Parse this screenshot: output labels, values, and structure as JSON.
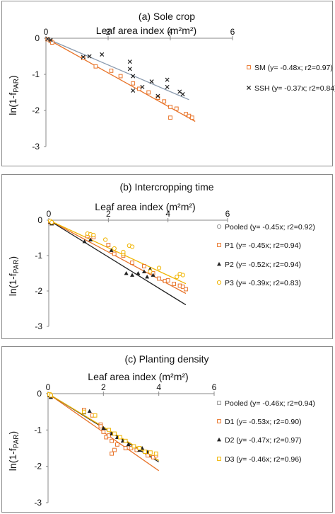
{
  "chart_data": [
    {
      "type": "scatter",
      "title": "(a) Sole crop",
      "xlabel": "Leaf area index (m²m²)",
      "ylabel": "ln(1-fPAR)",
      "ylabel_main": "ln(1-f",
      "ylabel_sub": "PAR",
      "ylabel_end": ")",
      "xlim": [
        0,
        6
      ],
      "ylim": [
        -3,
        0
      ],
      "xticks": [
        0,
        2,
        4,
        6
      ],
      "yticks": [
        0,
        -1,
        -2,
        -3
      ],
      "axis_position": "top",
      "grid": false,
      "legend_position": "right",
      "series": [
        {
          "name": "SM (y= -0.48x; r2=0.97)",
          "marker": "square-open",
          "color": "#e8742a",
          "slope": -0.48,
          "line_xmax": 4.8,
          "points": [
            [
              0.05,
              -0.03
            ],
            [
              0.15,
              -0.08
            ],
            [
              0.2,
              -0.12
            ],
            [
              1.2,
              -0.55
            ],
            [
              1.6,
              -0.78
            ],
            [
              2.1,
              -0.9
            ],
            [
              2.4,
              -1.05
            ],
            [
              2.8,
              -1.25
            ],
            [
              3.0,
              -1.4
            ],
            [
              3.3,
              -1.5
            ],
            [
              3.6,
              -1.65
            ],
            [
              3.8,
              -1.75
            ],
            [
              4.0,
              -1.9
            ],
            [
              4.2,
              -1.95
            ],
            [
              4.5,
              -2.1
            ],
            [
              4.6,
              -2.15
            ],
            [
              4.7,
              -2.2
            ],
            [
              4.0,
              -2.2
            ]
          ]
        },
        {
          "name": "SSH (y= -0.37x; r2=0.84)",
          "marker": "x",
          "color": "#222222",
          "line_color": "#8a9aae",
          "slope": -0.37,
          "line_xmax": 4.6,
          "points": [
            [
              0.05,
              -0.02
            ],
            [
              0.15,
              -0.05
            ],
            [
              1.2,
              -0.52
            ],
            [
              1.4,
              -0.5
            ],
            [
              1.8,
              -0.45
            ],
            [
              2.7,
              -0.65
            ],
            [
              2.7,
              -0.85
            ],
            [
              2.8,
              -1.05
            ],
            [
              2.8,
              -1.45
            ],
            [
              3.1,
              -1.35
            ],
            [
              3.4,
              -1.2
            ],
            [
              3.6,
              -1.6
            ],
            [
              3.9,
              -1.35
            ],
            [
              3.9,
              -1.15
            ],
            [
              4.3,
              -1.48
            ],
            [
              4.4,
              -1.55
            ]
          ]
        }
      ]
    },
    {
      "type": "scatter",
      "title": "(b) Intercropping time",
      "xlabel": "Leaf area index (m²m²)",
      "ylabel": "ln(1-fPAR)",
      "ylabel_main": "ln(1-f",
      "ylabel_sub": "PAR",
      "ylabel_end": ")",
      "xlim": [
        0,
        6
      ],
      "ylim": [
        -3,
        0
      ],
      "xticks": [
        0,
        2,
        4,
        6
      ],
      "yticks": [
        0,
        -1,
        -2,
        -3
      ],
      "axis_position": "top",
      "grid": false,
      "legend_position": "right",
      "series": [
        {
          "name": "Pooled (y= -0.45x; r2=0.92)",
          "marker": "circle-open",
          "color": "#999999",
          "line_color": "#e8742a",
          "slope": -0.45,
          "line_xmax": 4.6,
          "points": []
        },
        {
          "name": "P1 (y= -0.45x; r2=0.94)",
          "marker": "square-open",
          "color": "#e8742a",
          "slope": null,
          "points": [
            [
              0.05,
              -0.05
            ],
            [
              0.1,
              -0.08
            ],
            [
              1.3,
              -0.45
            ],
            [
              1.5,
              -0.48
            ],
            [
              2.0,
              -0.7
            ],
            [
              2.2,
              -0.95
            ],
            [
              2.5,
              -1.0
            ],
            [
              2.8,
              -1.2
            ],
            [
              3.2,
              -1.3
            ],
            [
              3.5,
              -1.5
            ],
            [
              3.7,
              -1.65
            ],
            [
              3.9,
              -1.72
            ],
            [
              4.2,
              -1.8
            ],
            [
              4.4,
              -1.85
            ],
            [
              4.5,
              -1.88
            ],
            [
              4.6,
              -1.95
            ],
            [
              4.0,
              -1.7
            ]
          ]
        },
        {
          "name": "P2 (y= -0.52x; r2=0.94)",
          "marker": "triangle",
          "color": "#222222",
          "line_color": "#222222",
          "slope": -0.52,
          "line_xmax": 4.6,
          "points": [
            [
              0.05,
              -0.05
            ],
            [
              0.1,
              -0.1
            ],
            [
              1.2,
              -0.6
            ],
            [
              1.4,
              -0.55
            ],
            [
              2.1,
              -0.85
            ],
            [
              2.6,
              -1.5
            ],
            [
              2.8,
              -1.55
            ],
            [
              3.0,
              -1.5
            ],
            [
              3.2,
              -1.45
            ],
            [
              3.3,
              -1.6
            ],
            [
              3.5,
              -1.55
            ],
            [
              3.4,
              -1.38
            ]
          ]
        },
        {
          "name": "P3 (y= -0.39x; r2=0.83)",
          "marker": "circle-open",
          "color": "#f0b400",
          "line_color": "#f0b400",
          "slope": -0.39,
          "line_xmax": 4.6,
          "points": [
            [
              0.05,
              -0.02
            ],
            [
              0.1,
              -0.06
            ],
            [
              1.3,
              -0.38
            ],
            [
              1.4,
              -0.4
            ],
            [
              1.5,
              -0.42
            ],
            [
              1.9,
              -0.55
            ],
            [
              2.2,
              -0.8
            ],
            [
              2.5,
              -0.95
            ],
            [
              2.7,
              -0.72
            ],
            [
              2.8,
              -0.75
            ],
            [
              2.5,
              -0.9
            ],
            [
              3.4,
              -1.45
            ],
            [
              3.7,
              -1.35
            ],
            [
              4.4,
              -1.52
            ],
            [
              4.5,
              -1.55
            ],
            [
              4.3,
              -1.6
            ]
          ]
        }
      ]
    },
    {
      "type": "scatter",
      "title": "(c) Planting density",
      "xlabel": "Leaf area index (m²m²)",
      "ylabel": "ln(1-fPAR)",
      "ylabel_main": "ln(1-f",
      "ylabel_sub": "PAR",
      "ylabel_end": ")",
      "xlim": [
        0,
        6
      ],
      "ylim": [
        -3,
        0
      ],
      "xticks": [
        0,
        2,
        4,
        6
      ],
      "yticks": [
        0,
        -1,
        -2,
        -3
      ],
      "axis_position": "top",
      "grid": false,
      "legend_position": "right",
      "series": [
        {
          "name": "Pooled (y= -0.46x; r2=0.94)",
          "marker": "square-open",
          "color": "#999999",
          "line_color": "#666666",
          "slope": -0.46,
          "line_xmax": 4.0,
          "points": []
        },
        {
          "name": "D1 (y= -0.53x; r2=0.90)",
          "marker": "square-open",
          "color": "#e8742a",
          "line_color": "#e8742a",
          "slope": -0.53,
          "line_xmax": 4.0,
          "points": [
            [
              0.05,
              -0.03
            ],
            [
              0.1,
              -0.08
            ],
            [
              1.3,
              -0.45
            ],
            [
              1.6,
              -0.6
            ],
            [
              1.9,
              -0.85
            ],
            [
              2.0,
              -1.05
            ],
            [
              2.1,
              -1.2
            ],
            [
              2.2,
              -1.15
            ],
            [
              2.3,
              -1.3
            ],
            [
              2.5,
              -1.4
            ],
            [
              2.4,
              -1.55
            ],
            [
              2.8,
              -1.5
            ],
            [
              3.0,
              -1.5
            ],
            [
              3.2,
              -1.55
            ],
            [
              3.6,
              -1.7
            ],
            [
              3.8,
              -1.75
            ],
            [
              3.9,
              -1.7
            ],
            [
              2.3,
              -1.65
            ],
            [
              1.9,
              -0.9
            ]
          ]
        },
        {
          "name": "D2 (y= -0.47x; r2=0.97)",
          "marker": "triangle",
          "color": "#222222",
          "line_color": "#222222",
          "slope": -0.47,
          "line_xmax": 4.0,
          "points": [
            [
              0.05,
              -0.05
            ],
            [
              0.1,
              -0.1
            ],
            [
              1.3,
              -0.52
            ],
            [
              1.5,
              -0.48
            ],
            [
              2.0,
              -0.95
            ],
            [
              2.3,
              -1.1
            ],
            [
              2.5,
              -1.2
            ],
            [
              2.7,
              -1.3
            ],
            [
              2.9,
              -1.4
            ],
            [
              3.1,
              -1.45
            ],
            [
              3.3,
              -1.55
            ],
            [
              3.4,
              -1.5
            ],
            [
              3.6,
              -1.6
            ]
          ]
        },
        {
          "name": "D3 (y= -0.46x; r2=0.96)",
          "marker": "square-open",
          "color": "#f0b400",
          "line_color": "#f0b400",
          "slope": -0.46,
          "line_xmax": 4.0,
          "points": [
            [
              0.05,
              -0.02
            ],
            [
              0.1,
              -0.05
            ],
            [
              1.3,
              -0.5
            ],
            [
              1.7,
              -0.6
            ],
            [
              2.2,
              -1.0
            ],
            [
              2.4,
              -1.1
            ],
            [
              2.6,
              -1.2
            ],
            [
              2.8,
              -1.3
            ],
            [
              3.1,
              -1.45
            ],
            [
              3.3,
              -1.5
            ],
            [
              3.5,
              -1.6
            ],
            [
              3.7,
              -1.62
            ],
            [
              3.9,
              -1.65
            ]
          ]
        }
      ]
    }
  ]
}
